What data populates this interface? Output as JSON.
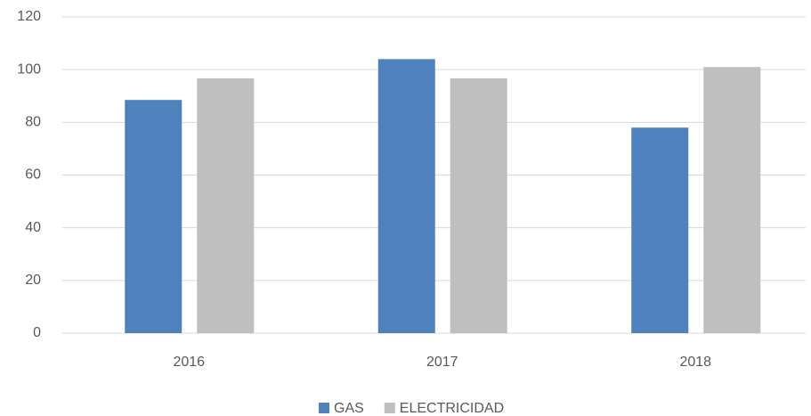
{
  "chart_data": {
    "type": "bar",
    "categories": [
      "2016",
      "2017",
      "2018"
    ],
    "series": [
      {
        "name": "GAS",
        "color": "#4f81bd",
        "values": [
          88.5,
          104,
          78
        ]
      },
      {
        "name": "ELECTRICIDAD",
        "color": "#bfbfbf",
        "values": [
          96.7,
          96.7,
          101
        ]
      }
    ],
    "ylim": [
      0,
      120
    ],
    "yticks": [
      0,
      20,
      40,
      60,
      80,
      100,
      120
    ],
    "grid": true,
    "legend": "bottom"
  }
}
